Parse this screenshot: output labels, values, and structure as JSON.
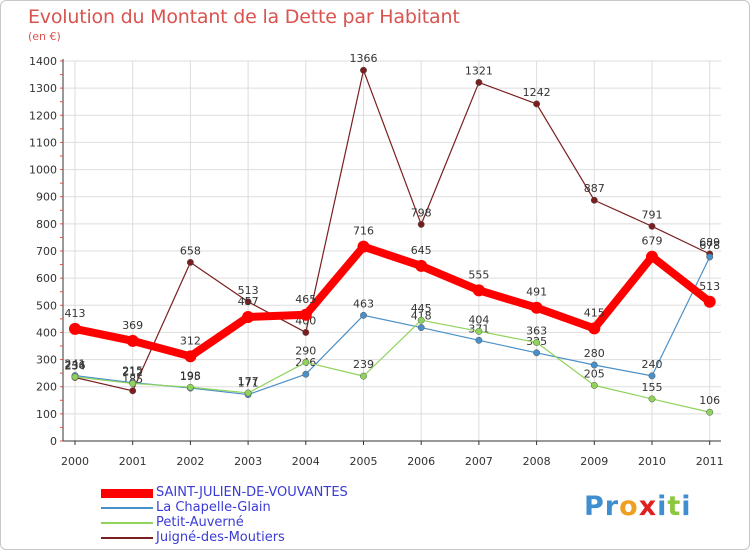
{
  "title": "Evolution du Montant de la Dette par Habitant",
  "subtitle": "(en €)",
  "logo": "Proxiti",
  "colors": {
    "title": "#d9534f",
    "legend_text": "#3b3bd6",
    "axis": "#333333",
    "grid": "#dddddd",
    "logo_letters": [
      "#3e8ed0",
      "#3e8ed0",
      "#f0a020",
      "#e02020",
      "#3e8ed0",
      "#8dc63f",
      "#3e8ed0"
    ]
  },
  "chart_data": {
    "type": "line",
    "title": "Evolution du Montant de la Dette par Habitant",
    "subtitle": "(en €)",
    "xlabel": "",
    "ylabel": "",
    "x": [
      "2000",
      "2001",
      "2002",
      "2003",
      "2004",
      "2005",
      "2006",
      "2007",
      "2008",
      "2009",
      "2010",
      "2011"
    ],
    "ylim": [
      0,
      1400
    ],
    "yticks": [
      0,
      100,
      200,
      300,
      400,
      500,
      600,
      700,
      800,
      900,
      1000,
      1100,
      1200,
      1300,
      1400
    ],
    "grid": true,
    "legend_position": "bottom-left",
    "series": [
      {
        "name": "SAINT-JULIEN-DE-VOUVANTES",
        "color": "#ff0000",
        "values": [
          413,
          369,
          312,
          457,
          465,
          716,
          645,
          555,
          491,
          415,
          679,
          513
        ],
        "labels": [
          "413",
          "369",
          "312",
          "457",
          "465",
          "716",
          "645",
          "555",
          "491",
          "415",
          "679",
          "513"
        ]
      },
      {
        "name": "La Chapelle-Glain",
        "color": "#4a90c8",
        "values": [
          241,
          215,
          195,
          171,
          246,
          463,
          418,
          371,
          325,
          280,
          240,
          678
        ],
        "labels": [
          "241",
          "215",
          "195",
          "171",
          "246",
          "463",
          "418",
          "371",
          "325",
          "280",
          "240",
          "678"
        ]
      },
      {
        "name": "Petit-Auverné",
        "color": "#8fd35a",
        "values": [
          236,
          212,
          198,
          177,
          290,
          239,
          445,
          404,
          363,
          205,
          155,
          106
        ],
        "labels": [
          "236",
          "212",
          "198",
          "177",
          "290",
          "239",
          "445",
          "404",
          "363",
          "205",
          "155",
          "106"
        ]
      },
      {
        "name": "Juigné-des-Moutiers",
        "color": "#7a1f1f",
        "values": [
          234,
          185,
          658,
          513,
          400,
          1366,
          798,
          1321,
          1242,
          887,
          791,
          689
        ],
        "labels": [
          "234",
          "185",
          "658",
          "513",
          "400",
          "1366",
          "798",
          "1321",
          "1242",
          "887",
          "791",
          "689"
        ]
      }
    ]
  }
}
